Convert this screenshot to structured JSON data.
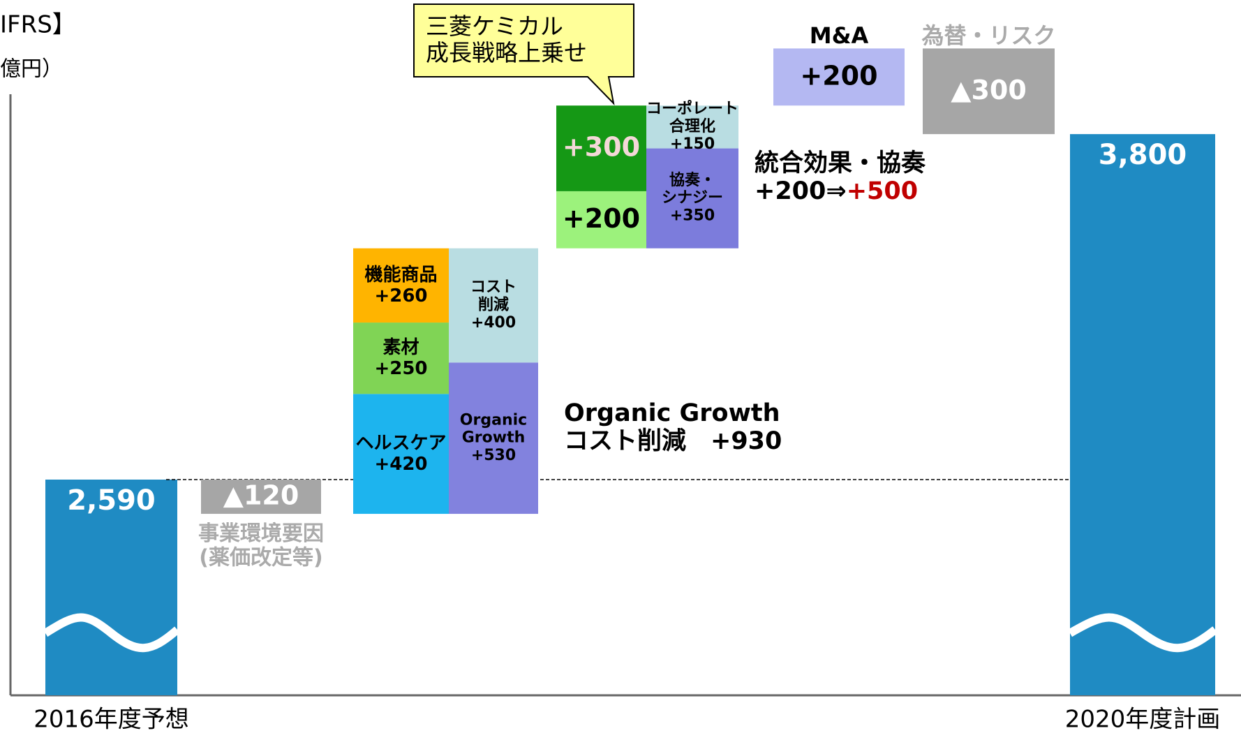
{
  "chart_data": {
    "type": "waterfall",
    "title": "IFRS】",
    "unit": "億円）",
    "start": {
      "label": "2016年度予想",
      "value": 2590,
      "value_label": "2,590",
      "color": "#1f8bc3"
    },
    "end": {
      "label": "2020年度計画",
      "value": 3800,
      "value_label": "3,800",
      "color": "#1f8bc3"
    },
    "steps": [
      {
        "annotation": [
          "事業環境要因",
          "(薬価改定等)"
        ],
        "annotation_color": "#aaaaaa",
        "columns": [
          {
            "segments": [
              {
                "value": -120,
                "value_label": "▲120",
                "color": "#a6a6a6",
                "text_color": "#ffffff"
              }
            ]
          }
        ]
      },
      {
        "annotation": [
          "Organic Growth",
          "コスト削減　+930"
        ],
        "columns": [
          {
            "segments": [
              {
                "name": [
                  "ヘルスケア"
                ],
                "value": 420,
                "value_label": "+420",
                "color": "#1db4ee"
              },
              {
                "name": [
                  "素材"
                ],
                "value": 250,
                "value_label": "+250",
                "color": "#80d455"
              },
              {
                "name": [
                  "機能商品"
                ],
                "value": 260,
                "value_label": "+260",
                "color": "#ffb400"
              }
            ]
          },
          {
            "segments": [
              {
                "name": [
                  "Organic",
                  "Growth"
                ],
                "value": 530,
                "value_label": "+530",
                "color": "#8282de"
              },
              {
                "name": [
                  "コスト",
                  "削減"
                ],
                "value": 400,
                "value_label": "+400",
                "color": "#b9dde2"
              }
            ]
          }
        ]
      },
      {
        "callout": [
          "三菱ケミカル",
          "成長戦略上乗せ"
        ],
        "annotation": [
          "統合効果・協奏",
          "+200⇒"
        ],
        "annotation_highlight": "+500",
        "highlight_color": "#c00000",
        "columns": [
          {
            "segments": [
              {
                "value": 200,
                "value_label": "+200",
                "color": "#9cf27c"
              },
              {
                "value": 300,
                "value_label": "+300",
                "color": "#159815",
                "text_color": "#f4d8d8"
              }
            ]
          },
          {
            "segments": [
              {
                "name": [
                  "協奏・",
                  "シナジー"
                ],
                "value": 350,
                "value_label": "+350",
                "color": "#7c7cdc"
              },
              {
                "name": [
                  "コーポレート",
                  "合理化"
                ],
                "value": 150,
                "value_label": "+150",
                "color": "#b9dde2"
              }
            ]
          }
        ]
      },
      {
        "annotation": [
          "M&A"
        ],
        "columns": [
          {
            "segments": [
              {
                "value": 200,
                "value_label": "+200",
                "color": "#b4b8f2"
              }
            ]
          }
        ]
      },
      {
        "annotation": [
          "為替・リスク"
        ],
        "annotation_color": "#aaaaaa",
        "columns": [
          {
            "segments": [
              {
                "value": -300,
                "value_label": "▲300",
                "color": "#a6a6a6",
                "text_color": "#ffffff"
              }
            ]
          }
        ]
      }
    ]
  }
}
